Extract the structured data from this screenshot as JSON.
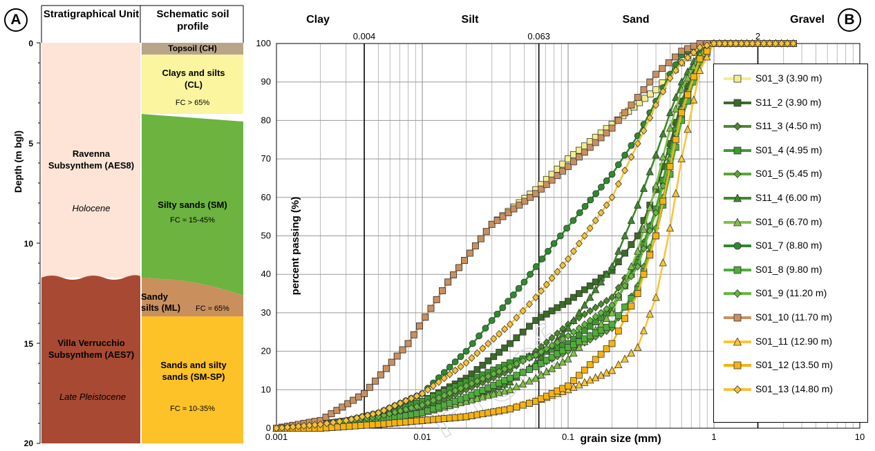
{
  "panelA": {
    "badge": "A",
    "header_unit": "Stratigraphical Unit",
    "header_profile": "Schematic soil profile",
    "ylabel": "Depth (m bgl)",
    "depth_ticks": [
      "0",
      "5",
      "10",
      "15",
      "20"
    ],
    "units": [
      {
        "name": "Ravenna Subsynthem (AES8)",
        "age": "Holocene",
        "color": "#fde4d6"
      },
      {
        "name": "Villa Verrucchio Subsynthem (AES7)",
        "age": "Late Pleistocene",
        "color": "#a84a33"
      }
    ],
    "layers": [
      {
        "title": "Topsoil (CH)",
        "fc": "",
        "color": "#b9a58a"
      },
      {
        "title": "Clays and silts (CL)",
        "fc": "FC > 65%",
        "color": "#fbf5a0"
      },
      {
        "title": "Silty sands (SM)",
        "fc": "FC ≈ 15-45%",
        "color": "#6db33f"
      },
      {
        "title": "Sandy silts (ML)",
        "fc": "FC ≈ 65%",
        "color": "#c9905e"
      },
      {
        "title": "Sands and silty sands (SM-SP)",
        "fc": "FC ≈ 10-35%",
        "color": "#fcc228"
      }
    ]
  },
  "chart_data": {
    "type": "line",
    "badge": "B",
    "xlabel": "grain size (mm)",
    "ylabel": "percent passing (%)",
    "x_scale": "log",
    "xlim": [
      0.001,
      10
    ],
    "ylim": [
      0,
      100
    ],
    "grid": true,
    "legend_position": "right",
    "x_tick_labels": [
      "0.001",
      "0.01",
      "0.1",
      "1",
      "10"
    ],
    "y_tick_labels": [
      "0",
      "10",
      "20",
      "30",
      "40",
      "50",
      "60",
      "70",
      "80",
      "90",
      "100"
    ],
    "class_labels": [
      "Clay",
      "Silt",
      "Sand",
      "Gravel"
    ],
    "boundaries": [
      {
        "value": 0.004,
        "label": "0.004"
      },
      {
        "value": 0.063,
        "label": "0.063"
      },
      {
        "value": 2,
        "label": "2"
      }
    ],
    "watermark": "Proof",
    "series": [
      {
        "name": "S01_3 (3.90 m)",
        "color": "#f2ee8e",
        "marker": "square",
        "x": [
          0.001,
          0.002,
          0.004,
          0.008,
          0.015,
          0.03,
          0.06,
          0.1,
          0.2,
          0.4,
          0.6,
          0.8,
          1,
          2,
          3.5
        ],
        "y": [
          0,
          2,
          9,
          22,
          38,
          53,
          62,
          70,
          79,
          88,
          95,
          99,
          100,
          100,
          100
        ]
      },
      {
        "name": "S11_2 (3.90 m)",
        "color": "#3c6b25",
        "marker": "square",
        "x": [
          0.001,
          0.002,
          0.005,
          0.01,
          0.02,
          0.04,
          0.06,
          0.1,
          0.2,
          0.3,
          0.4,
          0.5,
          0.6,
          0.8,
          1,
          2,
          3.5
        ],
        "y": [
          0,
          1,
          3,
          7,
          13,
          22,
          28,
          33,
          41,
          50,
          62,
          74,
          85,
          97,
          100,
          100,
          100
        ]
      },
      {
        "name": "S11_3 (4.50 m)",
        "color": "#4c8a2b",
        "marker": "diamond",
        "x": [
          0.001,
          0.002,
          0.005,
          0.01,
          0.02,
          0.04,
          0.06,
          0.1,
          0.2,
          0.3,
          0.4,
          0.5,
          0.6,
          0.8,
          1,
          2,
          3.5
        ],
        "y": [
          0,
          1,
          2,
          5,
          10,
          15,
          20,
          27,
          34,
          44,
          57,
          70,
          82,
          95,
          100,
          100,
          100
        ]
      },
      {
        "name": "S01_4 (4.95 m)",
        "color": "#3e9a2e",
        "marker": "square",
        "x": [
          0.001,
          0.002,
          0.005,
          0.01,
          0.02,
          0.04,
          0.06,
          0.1,
          0.2,
          0.3,
          0.4,
          0.5,
          0.6,
          0.8,
          1,
          2,
          3.5
        ],
        "y": [
          0,
          1,
          3,
          7,
          12,
          17,
          19,
          22,
          31,
          43,
          57,
          72,
          83,
          96,
          100,
          100,
          100
        ]
      },
      {
        "name": "S01_5 (5.45 m)",
        "color": "#5aa832",
        "marker": "diamond",
        "x": [
          0.001,
          0.002,
          0.005,
          0.01,
          0.02,
          0.04,
          0.06,
          0.1,
          0.2,
          0.3,
          0.4,
          0.5,
          0.6,
          0.8,
          1,
          2,
          3.5
        ],
        "y": [
          0,
          1,
          2,
          4,
          8,
          13,
          16,
          20,
          26,
          37,
          52,
          68,
          81,
          95,
          100,
          100,
          100
        ]
      },
      {
        "name": "S11_4 (6.00 m)",
        "color": "#3d8a2a",
        "marker": "triangle",
        "x": [
          0.001,
          0.002,
          0.005,
          0.01,
          0.02,
          0.04,
          0.06,
          0.1,
          0.2,
          0.3,
          0.4,
          0.5,
          0.6,
          0.8,
          1,
          2,
          3.5
        ],
        "y": [
          0,
          1,
          2,
          4,
          7,
          12,
          17,
          26,
          42,
          58,
          71,
          82,
          90,
          98,
          100,
          100,
          100
        ]
      },
      {
        "name": "S01_6 (6.70 m)",
        "color": "#7cc242",
        "marker": "triangle",
        "x": [
          0.001,
          0.002,
          0.005,
          0.01,
          0.02,
          0.04,
          0.06,
          0.1,
          0.2,
          0.3,
          0.4,
          0.5,
          0.6,
          0.8,
          1,
          2,
          3.5
        ],
        "y": [
          0,
          1,
          2,
          4,
          7,
          10,
          13,
          18,
          30,
          46,
          63,
          78,
          88,
          97,
          100,
          100,
          100
        ]
      },
      {
        "name": "S01_7 (8.80 m)",
        "color": "#2f8a2c",
        "marker": "circle",
        "x": [
          0.001,
          0.002,
          0.003,
          0.005,
          0.01,
          0.02,
          0.03,
          0.05,
          0.08,
          0.12,
          0.2,
          0.3,
          0.4,
          0.5,
          0.6,
          0.8,
          1,
          2,
          3.5
        ],
        "y": [
          0,
          1,
          2,
          4,
          9,
          20,
          28,
          38,
          48,
          56,
          66,
          76,
          85,
          92,
          97,
          100,
          100,
          100,
          100
        ]
      },
      {
        "name": "S01_8 (9.80 m)",
        "color": "#4fae3a",
        "marker": "square",
        "x": [
          0.001,
          0.002,
          0.005,
          0.01,
          0.02,
          0.04,
          0.06,
          0.1,
          0.2,
          0.3,
          0.4,
          0.5,
          0.6,
          0.8,
          1,
          2,
          3.5
        ],
        "y": [
          0,
          1,
          2,
          4,
          8,
          13,
          16,
          21,
          27,
          36,
          50,
          66,
          80,
          95,
          100,
          100,
          100
        ]
      },
      {
        "name": "S01_9 (11.20 m)",
        "color": "#64b83e",
        "marker": "diamond",
        "x": [
          0.001,
          0.002,
          0.005,
          0.01,
          0.02,
          0.04,
          0.06,
          0.1,
          0.2,
          0.3,
          0.4,
          0.5,
          0.6,
          0.8,
          1,
          2,
          3.5
        ],
        "y": [
          0,
          1,
          3,
          6,
          11,
          16,
          19,
          24,
          32,
          42,
          56,
          70,
          83,
          96,
          100,
          100,
          100
        ]
      },
      {
        "name": "S01_10 (11.70 m)",
        "color": "#c9905e",
        "marker": "square",
        "x": [
          0.001,
          0.002,
          0.004,
          0.008,
          0.015,
          0.03,
          0.06,
          0.1,
          0.2,
          0.3,
          0.4,
          0.6,
          0.8,
          1,
          2,
          3.5
        ],
        "y": [
          0,
          2,
          9,
          22,
          38,
          53,
          61,
          68,
          78,
          86,
          92,
          98,
          100,
          100,
          100,
          100
        ]
      },
      {
        "name": "S01_11 (12.90 m)",
        "color": "#fbc534",
        "marker": "triangle",
        "x": [
          0.001,
          0.002,
          0.005,
          0.01,
          0.02,
          0.04,
          0.06,
          0.1,
          0.2,
          0.3,
          0.4,
          0.5,
          0.6,
          0.8,
          1,
          2,
          3.5
        ],
        "y": [
          0,
          0,
          1,
          2,
          3,
          5,
          7,
          10,
          15,
          21,
          34,
          52,
          70,
          93,
          100,
          100,
          100
        ]
      },
      {
        "name": "S01_12 (13.50 m)",
        "color": "#f6b211",
        "marker": "square",
        "x": [
          0.001,
          0.002,
          0.005,
          0.01,
          0.02,
          0.04,
          0.06,
          0.1,
          0.2,
          0.3,
          0.4,
          0.5,
          0.6,
          0.8,
          1,
          2,
          3.5
        ],
        "y": [
          0,
          0,
          1,
          2,
          3,
          5,
          7,
          11,
          22,
          35,
          50,
          68,
          82,
          96,
          100,
          100,
          100
        ]
      },
      {
        "name": "S01_13 (14.80 m)",
        "color": "#f4c23c",
        "marker": "diamond",
        "x": [
          0.001,
          0.002,
          0.003,
          0.005,
          0.01,
          0.02,
          0.04,
          0.06,
          0.1,
          0.2,
          0.3,
          0.4,
          0.5,
          0.6,
          0.8,
          1,
          2,
          3.5
        ],
        "y": [
          0,
          1,
          2,
          4,
          9,
          17,
          27,
          34,
          44,
          60,
          74,
          84,
          91,
          95,
          99,
          100,
          100,
          100
        ]
      }
    ]
  }
}
